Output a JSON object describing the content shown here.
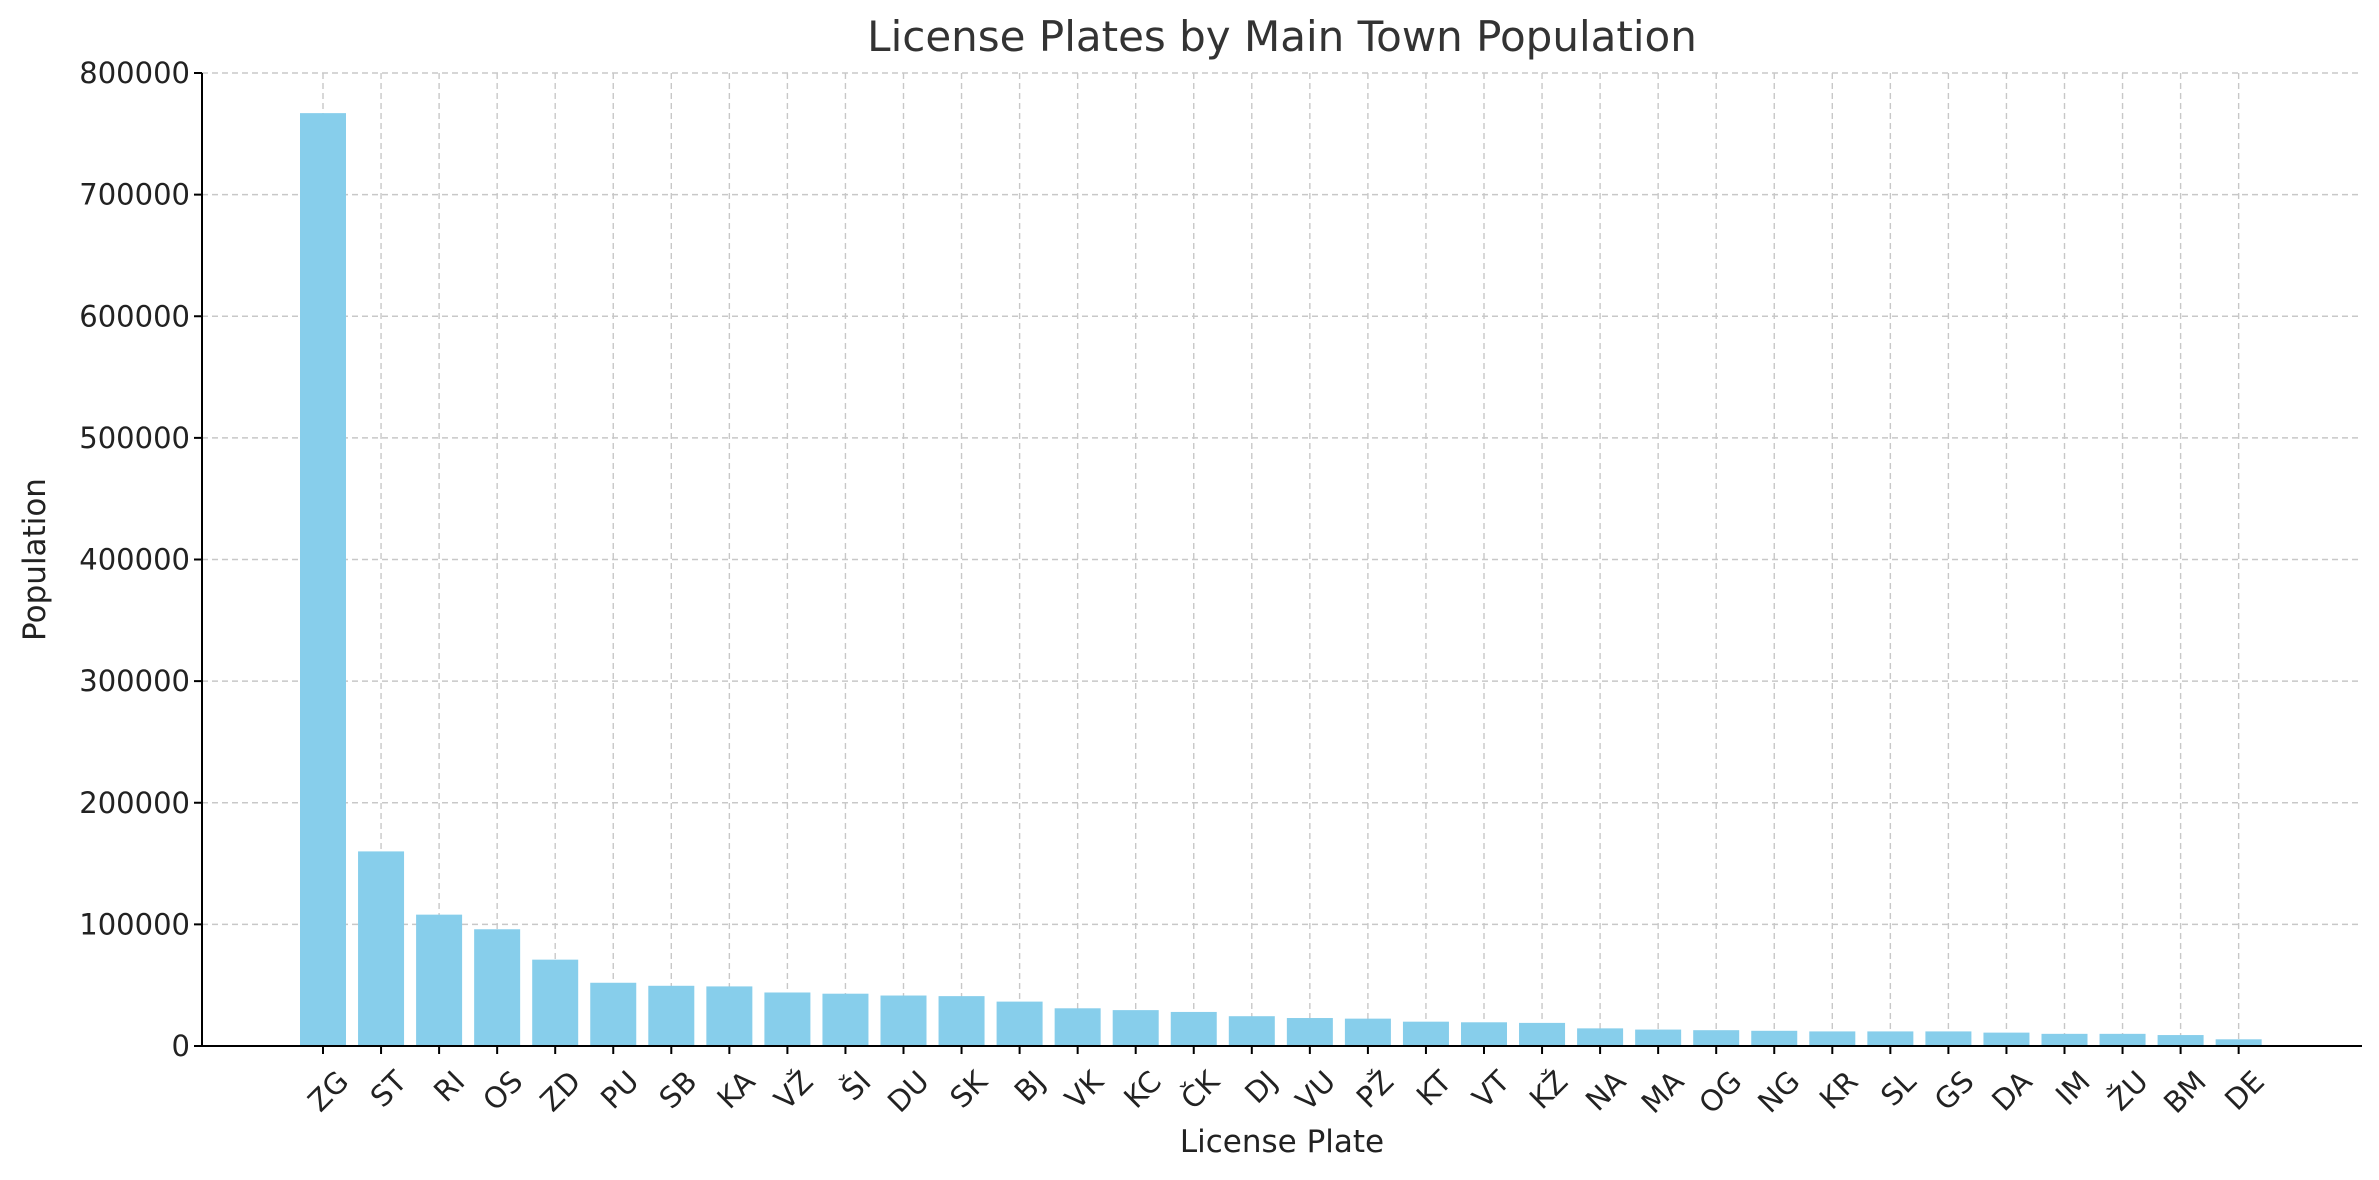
{
  "chart_data": {
    "type": "bar",
    "title": "License Plates by Main Town Population",
    "xlabel": "License Plate",
    "ylabel": "Population",
    "ylim": [
      0,
      800000
    ],
    "yticks": [
      0,
      100000,
      200000,
      300000,
      400000,
      500000,
      600000,
      700000,
      800000
    ],
    "ytick_labels": [
      "0",
      "100000",
      "200000",
      "300000",
      "400000",
      "500000",
      "600000",
      "700000",
      "800000"
    ],
    "grid": true,
    "bar_color": "#87ceeb",
    "categories": [
      "ZG",
      "ST",
      "RI",
      "OS",
      "ZD",
      "PU",
      "SB",
      "KA",
      "VŽ",
      "ŠI",
      "DU",
      "SK",
      "BJ",
      "VK",
      "KC",
      "ČK",
      "DJ",
      "VU",
      "PŽ",
      "KT",
      "VT",
      "KŽ",
      "NA",
      "MA",
      "OG",
      "NG",
      "KR",
      "SL",
      "GS",
      "DA",
      "IM",
      "ŽU",
      "BM",
      "DE"
    ],
    "values": [
      767000,
      160000,
      108000,
      96000,
      71000,
      52000,
      49500,
      49000,
      44000,
      43000,
      41500,
      41000,
      36500,
      31000,
      29500,
      28000,
      24500,
      23000,
      22500,
      20000,
      19500,
      19000,
      14500,
      13500,
      13000,
      12500,
      12000,
      12000,
      12000,
      11000,
      10000,
      10000,
      9000,
      5500
    ]
  }
}
